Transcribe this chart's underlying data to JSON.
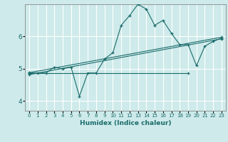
{
  "xlabel": "Humidex (Indice chaleur)",
  "bg_color": "#ceeaea",
  "line_color": "#1a6b6b",
  "grid_color": "#b8d8d8",
  "xlim": [
    -0.5,
    23.5
  ],
  "ylim": [
    3.7,
    7.0
  ],
  "yticks": [
    4,
    5,
    6
  ],
  "xticks": [
    0,
    1,
    2,
    3,
    4,
    5,
    6,
    7,
    8,
    9,
    10,
    11,
    12,
    13,
    14,
    15,
    16,
    17,
    18,
    19,
    20,
    21,
    22,
    23
  ],
  "series": [
    {
      "x": [
        0,
        1,
        2,
        3,
        4,
        5,
        6,
        7,
        8,
        9,
        10,
        11,
        12,
        13,
        14,
        15,
        16,
        17,
        18,
        19,
        20,
        21,
        22,
        23
      ],
      "y": [
        4.87,
        4.87,
        4.87,
        5.05,
        5.0,
        5.05,
        4.15,
        4.87,
        4.87,
        5.3,
        5.5,
        6.35,
        6.65,
        7.0,
        6.85,
        6.35,
        6.5,
        6.1,
        5.75,
        5.75,
        5.1,
        5.7,
        5.85,
        5.95
      ]
    },
    {
      "x": [
        0,
        23
      ],
      "y": [
        4.82,
        5.93
      ]
    },
    {
      "x": [
        0,
        23
      ],
      "y": [
        4.88,
        5.98
      ]
    },
    {
      "x": [
        0,
        19
      ],
      "y": [
        4.87,
        4.87
      ]
    }
  ]
}
